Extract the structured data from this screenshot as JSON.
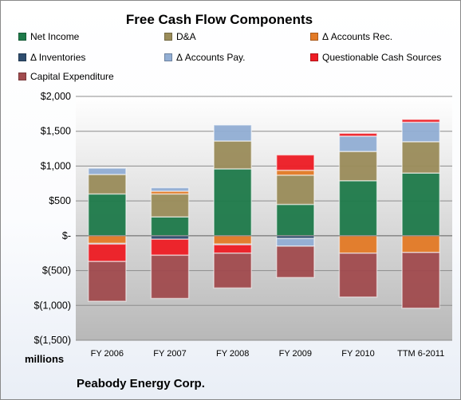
{
  "chart_data": {
    "type": "bar",
    "stacked": true,
    "title": "Free Cash Flow Components",
    "categories": [
      "FY 2006",
      "FY 2007",
      "FY 2008",
      "FY 2009",
      "FY 2010",
      "TTM 6-2011"
    ],
    "ylim": [
      -1500,
      2000
    ],
    "yticks": [
      2000,
      1500,
      1000,
      500,
      0,
      -500,
      -1000,
      -1500
    ],
    "ytick_labels": [
      "$2,000",
      "$1,500",
      "$1,000",
      "$500",
      "$-",
      "$(500)",
      "$(1,000)",
      "$(1,500)"
    ],
    "units_label": "millions",
    "source_label": "Peabody Energy Corp.",
    "grid": true,
    "legend_position": "top",
    "series": [
      {
        "name": "Net Income",
        "color": "#1e7a4a",
        "values": [
          600,
          270,
          960,
          450,
          790,
          900
        ]
      },
      {
        "name": "D&A",
        "color": "#9a8c5a",
        "values": [
          280,
          330,
          400,
          420,
          420,
          450
        ]
      },
      {
        "name": "Δ Accounts Rec.",
        "color": "#e37a26",
        "values": [
          -110,
          40,
          -120,
          70,
          -250,
          -240
        ]
      },
      {
        "name": "Δ Inventories",
        "color": "#2e4d6e",
        "values": [
          -10,
          -50,
          -10,
          -40,
          0,
          0
        ]
      },
      {
        "name": "Δ Accounts Pay.",
        "color": "#92aed4",
        "values": [
          90,
          50,
          230,
          -110,
          220,
          280
        ]
      },
      {
        "name": "Questionable Cash Sources",
        "color": "#ee1c24",
        "values": [
          -250,
          -230,
          -120,
          220,
          40,
          40
        ]
      },
      {
        "name": "Capital Expenditure",
        "color": "#a14b4e",
        "values": [
          -570,
          -620,
          -500,
          -450,
          -630,
          -800
        ]
      }
    ]
  }
}
